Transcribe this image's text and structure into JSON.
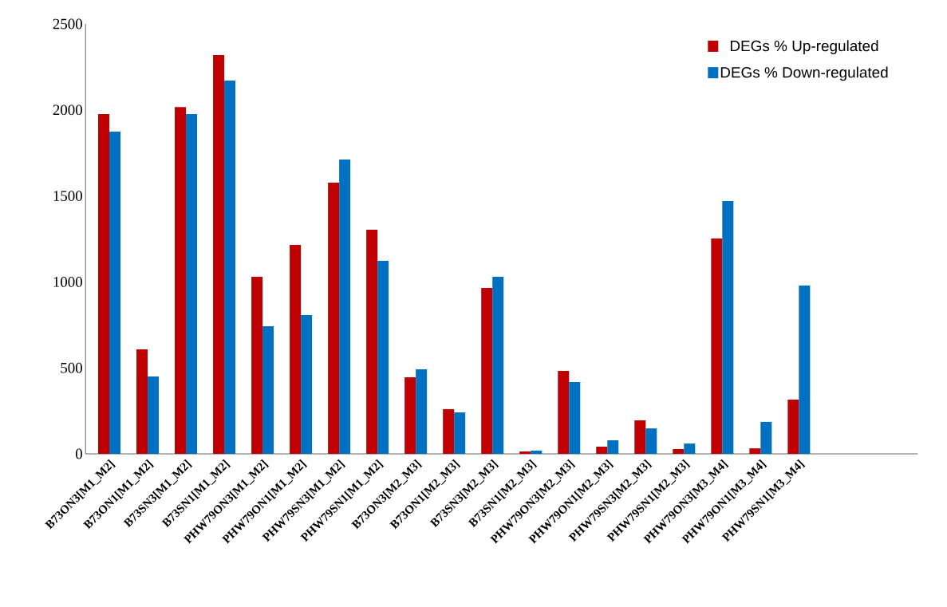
{
  "chart_data": {
    "type": "bar",
    "categories": [
      "B73ON3[M1_M2]",
      "B73ON1[M1_M2]",
      "B73SN3[M1_M2]",
      "B73SN1[M1_M2]",
      "PHW79ON3[M1_M2]",
      "PHW79ON1[M1_M2]",
      "PHW79SN3[M1_M2]",
      "PHW79SN1[M1_M2]",
      "B73ON3[M2_M3]",
      "B73ON1[M2_M3]",
      "B73SN3[M2_M3]",
      "B73SN1[M2_M3]",
      "PHW79ON3[M2_M3]",
      "PHW79ON1[M2_M3]",
      "PHW79SN3[M2_M3]",
      "PHW79SN1[M2_M3]",
      "PHW79ON3[M3_M4]",
      "PHW79ON1[M3_M4]",
      "PHW79SN1[M3_M4]"
    ],
    "series": [
      {
        "name": "DEGs % Up-regulated",
        "color": "#c00000",
        "values": [
          1976,
          608,
          2017,
          2319,
          1030,
          1215,
          1577,
          1303,
          445,
          260,
          965,
          14,
          482,
          42,
          195,
          28,
          1252,
          32,
          315
        ]
      },
      {
        "name": "DEGs % Down-regulated",
        "color": "#0070c0",
        "values": [
          1874,
          450,
          1976,
          2171,
          742,
          807,
          1711,
          1122,
          492,
          241,
          1030,
          19,
          417,
          79,
          148,
          60,
          1470,
          186,
          979
        ]
      }
    ],
    "ylim": [
      0,
      2500
    ],
    "yticks": [
      0,
      500,
      1000,
      1500,
      2000,
      2500
    ],
    "grid": false,
    "legend": "top right"
  }
}
